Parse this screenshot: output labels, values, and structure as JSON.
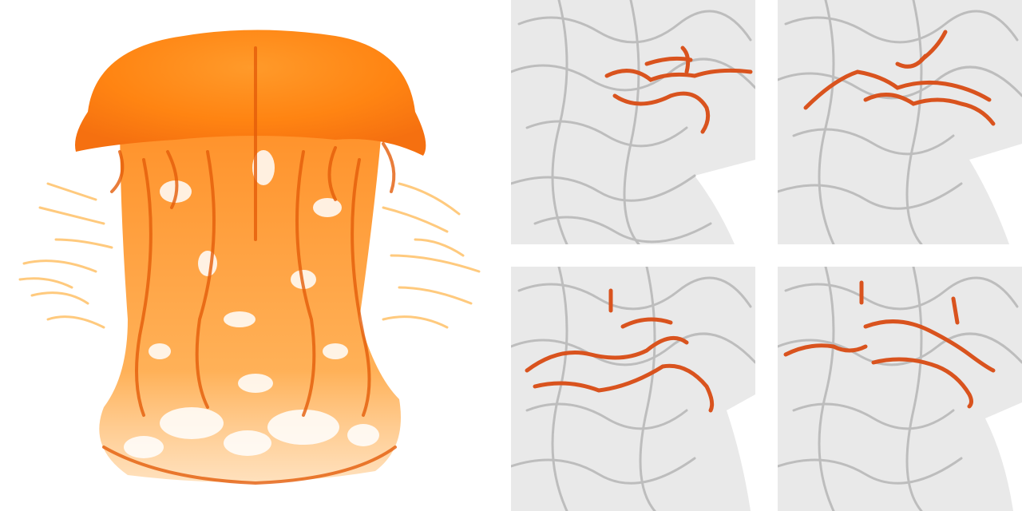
{
  "figure": {
    "background": "#ffffff",
    "volume_colors": {
      "light": "#ffb347",
      "mid": "#ff8c1a",
      "dark": "#e35d0a"
    },
    "surface_colors": {
      "base": "#e6e6e6",
      "shade": "#b8b8b8",
      "light": "#f4f4f4"
    },
    "feature_color": "#d9531e",
    "panels": [
      {
        "id": "main",
        "kind": "volume-rendering"
      },
      {
        "id": "top-left",
        "kind": "surface-with-highlighted-feature"
      },
      {
        "id": "top-right",
        "kind": "surface-with-highlighted-feature"
      },
      {
        "id": "bottom-left",
        "kind": "surface-with-highlighted-feature"
      },
      {
        "id": "bottom-right",
        "kind": "surface-with-highlighted-feature"
      }
    ]
  }
}
